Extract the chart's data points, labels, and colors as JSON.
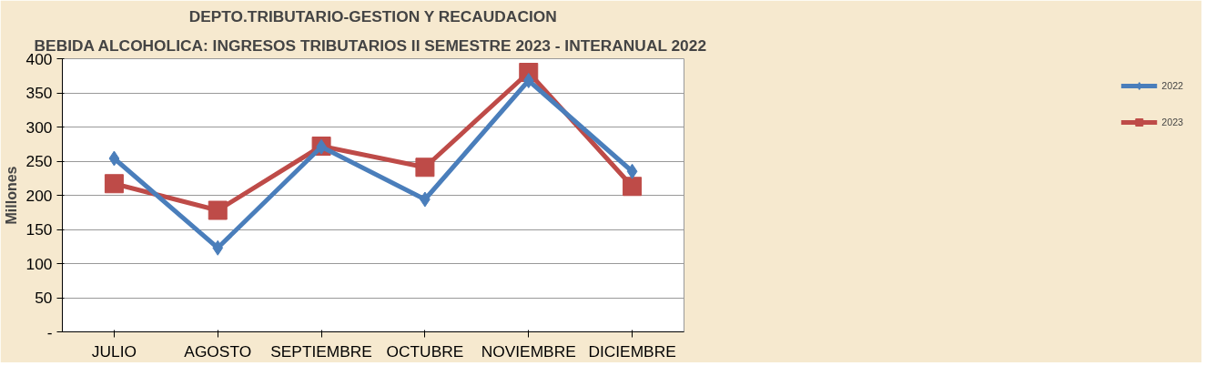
{
  "chart_data": {
    "type": "line",
    "title": "DEPTO.TRIBUTARIO-GESTION Y RECAUDACION",
    "subtitle": "BEBIDA ALCOHOLICA:  INGRESOS TRIBUTARIOS II SEMESTRE 2023 - INTERANUAL 2022",
    "ylabel": "Millones",
    "categories": [
      "JULIO",
      "AGOSTO",
      "SEPTIEMBRE",
      "OCTUBRE",
      "NOVIEMBRE",
      "DICIEMBRE"
    ],
    "series": [
      {
        "name": "2022",
        "color": "#4a7ebb",
        "marker": "diamond",
        "values": [
          254,
          123,
          271,
          194,
          368,
          235
        ]
      },
      {
        "name": "2023",
        "color": "#be4b48",
        "marker": "square",
        "values": [
          217,
          178,
          272,
          241,
          380,
          213
        ]
      }
    ],
    "ylim": [
      0,
      400
    ],
    "yticks": [
      {
        "value": 0,
        "label": "-"
      },
      50,
      100,
      150,
      200,
      250,
      300,
      350,
      400
    ],
    "grid": "y",
    "legend": "right",
    "line_style": "solid"
  }
}
